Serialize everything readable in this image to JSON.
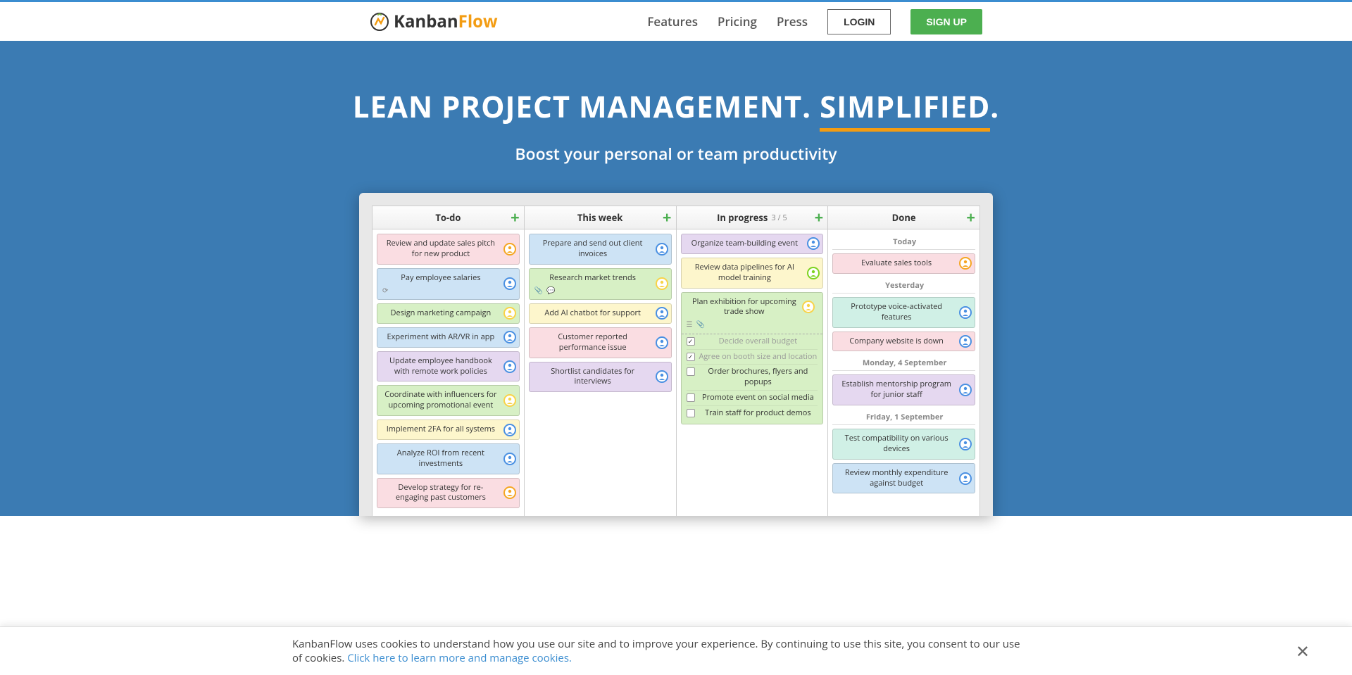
{
  "brand": {
    "name_part1": "Kanban",
    "name_part2": "Flow"
  },
  "nav": {
    "features": "Features",
    "pricing": "Pricing",
    "press": "Press",
    "login": "LOGIN",
    "signup": "SIGN UP"
  },
  "hero": {
    "title_pre": "LEAN PROJECT MANAGEMENT. ",
    "title_em": "SIMPLIFIED",
    "title_post": ".",
    "subtitle": "Boost your personal or team productivity"
  },
  "columns": {
    "todo": {
      "title": "To-do"
    },
    "thisweek": {
      "title": "This week"
    },
    "inprogress": {
      "title": "In progress",
      "wip": "3 / 5"
    },
    "done": {
      "title": "Done"
    }
  },
  "cards": {
    "todo": [
      {
        "text": "Review and update sales pitch for new product",
        "color": "pink",
        "avatar": "orange"
      },
      {
        "text": "Pay employee salaries",
        "color": "blue",
        "avatar": "blue",
        "recur": true
      },
      {
        "text": "Design marketing campaign",
        "color": "green",
        "avatar": "yellow"
      },
      {
        "text": "Experiment with AR/VR in app",
        "color": "blue",
        "avatar": "blue"
      },
      {
        "text": "Update employee handbook with remote work policies",
        "color": "purple",
        "avatar": "blue"
      },
      {
        "text": "Coordinate with influencers for upcoming promotional event",
        "color": "green",
        "avatar": "yellow"
      },
      {
        "text": "Implement 2FA for all systems",
        "color": "yellow",
        "avatar": "blue"
      },
      {
        "text": "Analyze ROI from recent investments",
        "color": "blue",
        "avatar": "blue"
      },
      {
        "text": "Develop strategy for re-engaging past customers",
        "color": "pink",
        "avatar": "orange"
      }
    ],
    "thisweek": [
      {
        "text": "Prepare and send out client invoices",
        "color": "blue",
        "avatar": "blue"
      },
      {
        "text": "Research market trends",
        "color": "green",
        "avatar": "yellow",
        "attach": true,
        "comment": true
      },
      {
        "text": "Add AI chatbot for support",
        "color": "yellow",
        "avatar": "blue"
      },
      {
        "text": "Customer reported performance issue",
        "color": "pink",
        "avatar": "blue"
      },
      {
        "text": "Shortlist candidates for interviews",
        "color": "purple",
        "avatar": "blue"
      }
    ],
    "inprogress": [
      {
        "text": "Organize team-building event",
        "color": "purple",
        "avatar": "blue"
      },
      {
        "text": "Review data pipelines for AI model training",
        "color": "yellow",
        "avatar": "green"
      }
    ],
    "checklist": {
      "title": "Plan exhibition for upcoming trade show",
      "items": [
        {
          "label": "Decide overall budget",
          "done": true
        },
        {
          "label": "Agree on booth size and location",
          "done": true
        },
        {
          "label": "Order brochures, flyers and popups",
          "done": false
        },
        {
          "label": "Promote event on social media",
          "done": false
        },
        {
          "label": "Train staff for product demos",
          "done": false
        }
      ]
    },
    "done": {
      "lane_today": "Today",
      "lane_yesterday": "Yesterday",
      "lane_mon": "Monday, 4 September",
      "lane_fri": "Friday, 1 September",
      "today": [
        {
          "text": "Evaluate sales tools",
          "color": "pink",
          "avatar": "orange"
        }
      ],
      "yesterday": [
        {
          "text": "Prototype voice-activated features",
          "color": "teal",
          "avatar": "blue"
        },
        {
          "text": "Company website is down",
          "color": "pink",
          "avatar": "blue"
        }
      ],
      "mon": [
        {
          "text": "Establish mentorship program for junior staff",
          "color": "purple",
          "avatar": "blue"
        }
      ],
      "fri": [
        {
          "text": "Test compatibility on various devices",
          "color": "teal",
          "avatar": "blue"
        },
        {
          "text": "Review monthly expenditure against budget",
          "color": "blue",
          "avatar": "blue"
        }
      ]
    }
  },
  "cookie": {
    "text_pre": "KanbanFlow uses cookies to understand how you use our site and to improve your experience. By continuing to use this site, you consent to our use of cookies. ",
    "link": "Click here to learn more and manage cookies."
  },
  "colors": {
    "accent": "#3b8dd0",
    "hero_bg": "#3b7bb3",
    "orange": "#f39c12",
    "success": "#4caf50"
  }
}
